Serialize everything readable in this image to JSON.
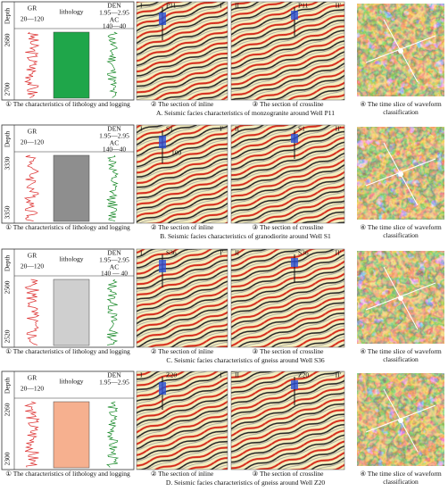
{
  "rows": [
    {
      "depth_label": "Depth",
      "gr_label": "GR",
      "gr_range": "20—120",
      "lithology": "lithology",
      "lithology_color": "#1fa64a",
      "den_label": "DEN",
      "den_range": "1.95—2.95",
      "ac_label": "AC",
      "ac_range": "140—40",
      "depths": [
        "2680",
        "2700"
      ],
      "inline_labels": [
        "I",
        "I'"
      ],
      "well": "P11",
      "crossline_labels": [
        "II",
        "II'"
      ],
      "captions": [
        "① The characteristics of lithology and logging",
        "② The section of inline",
        "③ The section of crossline",
        "④ The time slice of waveform classification"
      ],
      "row_caption": "A. Seismic facies characteristics of monzogranite around Well P11"
    },
    {
      "depth_label": "Depth",
      "gr_label": "GR",
      "gr_range": "20—120",
      "lithology_color": "#8e8e8e",
      "den_label": "DEN",
      "den_range": "1.95—2.95",
      "ac_label": "AC",
      "ac_range": "140—40",
      "depths": [
        "3330",
        "3350"
      ],
      "inline_labels": [
        "I",
        "I'"
      ],
      "well": "S1",
      "inline_note": "100",
      "crossline_labels": [
        "II",
        "II'"
      ],
      "captions": [
        "① The characteristics of lithology and logging",
        "② The section of inline",
        "③ The section of crossline",
        "④ The time slice of waveform classification"
      ],
      "row_caption": "B. Seismic facies characteristics of granodiorite around Well S1"
    },
    {
      "depth_label": "Depth",
      "gr_label": "GR",
      "gr_range": "20—120",
      "lithology": "lithology",
      "lithology_color": "#cfcfcf",
      "den_label": "DEN",
      "den_range": "1.95—2.95",
      "ac_label": "AC",
      "ac_range": "140 — 40",
      "depths": [
        "2500",
        "2520"
      ],
      "inline_labels": [
        "I",
        "I'"
      ],
      "well": "S36",
      "crossline_labels": [
        "II",
        "II'"
      ],
      "captions": [
        "① The characteristics of lithology and logging",
        "② The section of inline",
        "③ The section of crossline",
        "④ The time slice of waveform classification"
      ],
      "row_caption": "C. Seismic facies characteristics of gneiss around Well S36"
    },
    {
      "depth_label": "Depth",
      "gr_label": "GR",
      "gr_range": "20—120",
      "lithology": "lithology",
      "lithology_color": "#f6b08f",
      "den_label": "DEN",
      "den_range": "1.95—2.95",
      "depths": [
        "2260",
        "2300"
      ],
      "inline_labels": [
        "I",
        "I'"
      ],
      "well": "Z20",
      "crossline_labels": [
        "II",
        "II'"
      ],
      "captions": [
        "① The characteristics of lithology and logging",
        "② The section of inline",
        "③ The section of crossline",
        "④ The time slice of waveform classification"
      ],
      "row_caption": "D. Seismic facies characteristics of gneiss around Well Z20"
    }
  ]
}
